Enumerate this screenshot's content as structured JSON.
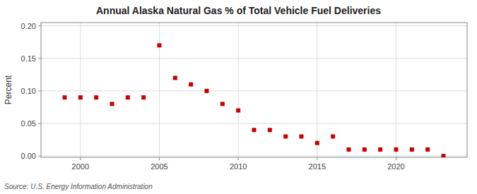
{
  "chart_data": {
    "type": "scatter",
    "title": "Annual Alaska Natural Gas % of Total Vehicle Fuel Deliveries",
    "ylabel": "Percent",
    "source": "Source: U.S. Energy Information Administration",
    "x": [
      1999,
      2000,
      2001,
      2002,
      2003,
      2004,
      2005,
      2006,
      2007,
      2008,
      2009,
      2010,
      2011,
      2012,
      2013,
      2014,
      2015,
      2016,
      2017,
      2018,
      2019,
      2020,
      2021,
      2022,
      2023
    ],
    "values": [
      0.09,
      0.09,
      0.09,
      0.08,
      0.09,
      0.09,
      0.17,
      0.12,
      0.11,
      0.1,
      0.08,
      0.07,
      0.04,
      0.04,
      0.03,
      0.03,
      0.02,
      0.03,
      0.01,
      0.01,
      0.01,
      0.01,
      0.01,
      0.01,
      0.0
    ],
    "color": "#cc0000",
    "marker": "square",
    "xlim": [
      1997.5,
      2024.5
    ],
    "ylim": [
      -0.002,
      0.205
    ],
    "xticks": [
      2000,
      2005,
      2010,
      2015,
      2020
    ],
    "yticks": [
      {
        "value": 0.0,
        "label": "0.00"
      },
      0.05,
      {
        "value": 0.1,
        "label": "0.10"
      },
      0.15,
      {
        "value": 0.2,
        "label": "0.20"
      }
    ],
    "grid": true
  }
}
